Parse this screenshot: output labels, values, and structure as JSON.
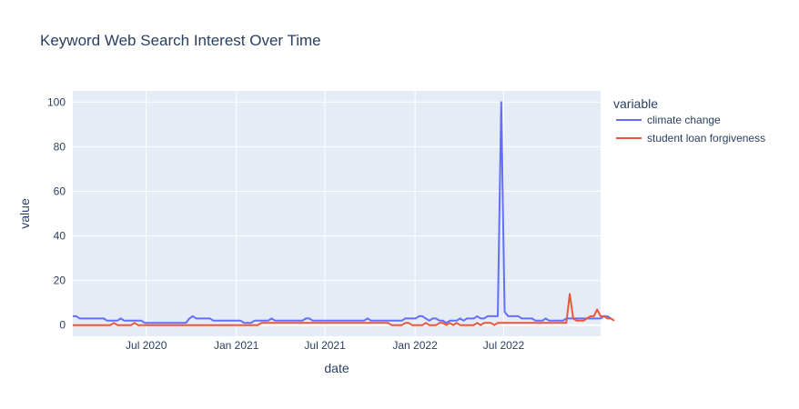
{
  "chart_data": {
    "type": "line",
    "title": "Keyword Web Search Interest Over Time",
    "xlabel": "date",
    "ylabel": "value",
    "x_start": "2020-02-02",
    "x_end": "2023-01-15",
    "x_step_days": 7,
    "x_ticks": [
      {
        "date": "2020-07-01",
        "label": "Jul 2020"
      },
      {
        "date": "2021-01-01",
        "label": "Jan 2021"
      },
      {
        "date": "2021-07-01",
        "label": "Jul 2021"
      },
      {
        "date": "2022-01-01",
        "label": "Jan 2022"
      },
      {
        "date": "2022-07-01",
        "label": "Jul 2022"
      }
    ],
    "ylim": [
      -5,
      105
    ],
    "y_ticks": [
      0,
      20,
      40,
      60,
      80,
      100
    ],
    "grid": true,
    "legend": {
      "title": "variable",
      "position": "right"
    },
    "series": [
      {
        "name": "climate change",
        "color": "#636efa",
        "values": [
          4,
          4,
          3,
          3,
          3,
          3,
          3,
          3,
          3,
          3,
          2,
          2,
          2,
          2,
          3,
          2,
          2,
          2,
          2,
          2,
          2,
          1,
          1,
          1,
          1,
          1,
          1,
          1,
          1,
          1,
          1,
          1,
          1,
          1,
          3,
          4,
          3,
          3,
          3,
          3,
          3,
          2,
          2,
          2,
          2,
          2,
          2,
          2,
          2,
          2,
          1,
          1,
          1,
          2,
          2,
          2,
          2,
          2,
          3,
          2,
          2,
          2,
          2,
          2,
          2,
          2,
          2,
          2,
          3,
          3,
          2,
          2,
          2,
          2,
          2,
          2,
          2,
          2,
          2,
          2,
          2,
          2,
          2,
          2,
          2,
          2,
          3,
          2,
          2,
          2,
          2,
          2,
          2,
          2,
          2,
          2,
          2,
          3,
          3,
          3,
          3,
          4,
          4,
          3,
          2,
          3,
          3,
          2,
          2,
          1,
          2,
          2,
          2,
          3,
          2,
          3,
          3,
          3,
          4,
          3,
          3,
          4,
          4,
          4,
          4,
          100,
          6,
          4,
          4,
          4,
          4,
          3,
          3,
          3,
          3,
          2,
          2,
          2,
          3,
          2,
          2,
          2,
          2,
          2,
          3,
          3,
          3,
          3,
          3,
          3,
          3,
          3,
          3,
          3,
          3,
          4,
          4,
          3
        ]
      },
      {
        "name": "student loan forgiveness",
        "color": "#ef553b",
        "values": [
          0,
          0,
          0,
          0,
          0,
          0,
          0,
          0,
          0,
          0,
          0,
          0,
          1,
          0,
          0,
          0,
          0,
          0,
          1,
          0,
          0,
          0,
          0,
          0,
          0,
          0,
          0,
          0,
          0,
          0,
          0,
          0,
          0,
          0,
          0,
          0,
          0,
          0,
          0,
          0,
          0,
          0,
          0,
          0,
          0,
          0,
          0,
          0,
          0,
          0,
          0,
          0,
          0,
          0,
          0,
          1,
          1,
          1,
          1,
          1,
          1,
          1,
          1,
          1,
          1,
          1,
          1,
          1,
          1,
          1,
          1,
          1,
          1,
          1,
          1,
          1,
          1,
          1,
          1,
          1,
          1,
          1,
          1,
          1,
          1,
          1,
          1,
          1,
          1,
          1,
          1,
          1,
          1,
          0,
          0,
          0,
          0,
          1,
          1,
          0,
          0,
          0,
          0,
          1,
          0,
          0,
          0,
          1,
          1,
          0,
          1,
          0,
          1,
          0,
          0,
          0,
          0,
          0,
          1,
          0,
          1,
          1,
          1,
          0,
          1,
          1,
          1,
          1,
          1,
          1,
          1,
          1,
          1,
          1,
          1,
          1,
          1,
          1,
          1,
          1,
          1,
          1,
          1,
          1,
          1,
          14,
          3,
          2,
          2,
          2,
          3,
          4,
          4,
          7,
          4,
          4,
          3,
          3,
          2
        ]
      }
    ]
  }
}
